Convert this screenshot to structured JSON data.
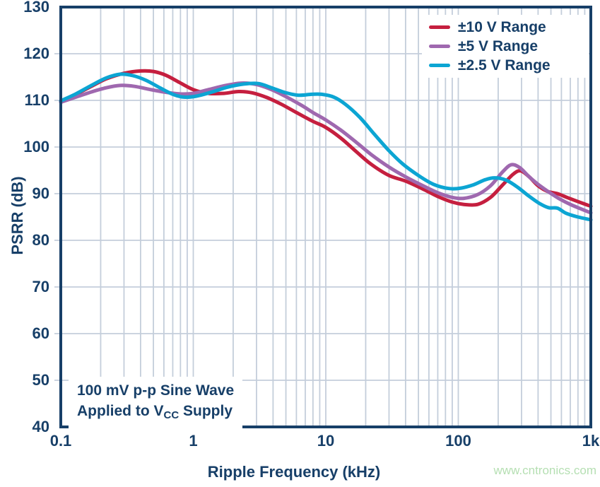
{
  "watermark": {
    "text": "www.cntronics.com",
    "color": "#b5dfb2"
  },
  "chart_data": {
    "type": "line",
    "title": "",
    "xlabel": "Ripple Frequency (kHz)",
    "ylabel": "PSRR (dB)",
    "x_scale": "log",
    "xlim": [
      0.1,
      1000
    ],
    "ylim": [
      40,
      130
    ],
    "y_grid_step": 10,
    "grid": true,
    "legend_position": "top-right-inside",
    "colors": {
      "text": "#173f68",
      "axis_border": "#173f68",
      "grid": "#c4cedb",
      "plot_background": "#ffffff"
    },
    "x_ticks": [
      {
        "value": 0.1,
        "label": "0.1"
      },
      {
        "value": 1,
        "label": "1"
      },
      {
        "value": 10,
        "label": "10"
      },
      {
        "value": 100,
        "label": "100"
      },
      {
        "value": 1000,
        "label": "1k"
      }
    ],
    "y_ticks": [
      {
        "value": 130,
        "label": "130"
      },
      {
        "value": 120,
        "label": "120"
      },
      {
        "value": 110,
        "label": "110"
      },
      {
        "value": 100,
        "label": "100"
      },
      {
        "value": 90,
        "label": "90"
      },
      {
        "value": 80,
        "label": "80"
      },
      {
        "value": 70,
        "label": "70"
      },
      {
        "value": 60,
        "label": "60"
      },
      {
        "value": 50,
        "label": "50"
      },
      {
        "value": 40,
        "label": "40"
      }
    ],
    "annotation": {
      "line1": "100 mV p-p Sine Wave",
      "line2_pre": "Applied to V",
      "line2_sub": "CC",
      "line2_post": " Supply"
    },
    "series": [
      {
        "name": "±10 V Range",
        "color": "#c51f3f",
        "points": [
          [
            0.1,
            109.8
          ],
          [
            0.13,
            111.3
          ],
          [
            0.17,
            113.0
          ],
          [
            0.22,
            114.6
          ],
          [
            0.3,
            115.8
          ],
          [
            0.4,
            116.3
          ],
          [
            0.5,
            116.2
          ],
          [
            0.62,
            115.4
          ],
          [
            0.78,
            113.9
          ],
          [
            1.0,
            112.3
          ],
          [
            1.3,
            111.5
          ],
          [
            1.7,
            111.5
          ],
          [
            2.2,
            111.9
          ],
          [
            2.8,
            111.6
          ],
          [
            3.6,
            110.6
          ],
          [
            4.6,
            109.2
          ],
          [
            6.0,
            107.4
          ],
          [
            8.0,
            105.5
          ],
          [
            10,
            104.2
          ],
          [
            13,
            101.9
          ],
          [
            17,
            99.0
          ],
          [
            22,
            96.3
          ],
          [
            30,
            93.9
          ],
          [
            40,
            92.7
          ],
          [
            55,
            90.9
          ],
          [
            70,
            89.4
          ],
          [
            90,
            88.2
          ],
          [
            110,
            87.7
          ],
          [
            140,
            87.7
          ],
          [
            175,
            89.2
          ],
          [
            215,
            91.8
          ],
          [
            260,
            94.2
          ],
          [
            295,
            94.9
          ],
          [
            340,
            93.7
          ],
          [
            400,
            91.7
          ],
          [
            470,
            90.5
          ],
          [
            560,
            90.0
          ],
          [
            660,
            89.2
          ],
          [
            800,
            88.3
          ],
          [
            1000,
            87.3
          ]
        ]
      },
      {
        "name": "±5 V Range",
        "color": "#9f68af",
        "points": [
          [
            0.1,
            109.6
          ],
          [
            0.13,
            110.7
          ],
          [
            0.17,
            111.8
          ],
          [
            0.22,
            112.7
          ],
          [
            0.28,
            113.2
          ],
          [
            0.36,
            113.0
          ],
          [
            0.46,
            112.4
          ],
          [
            0.6,
            111.8
          ],
          [
            0.78,
            111.4
          ],
          [
            1.0,
            111.5
          ],
          [
            1.3,
            112.3
          ],
          [
            1.7,
            113.1
          ],
          [
            2.3,
            113.7
          ],
          [
            3.0,
            113.4
          ],
          [
            3.9,
            112.3
          ],
          [
            5.0,
            110.8
          ],
          [
            6.5,
            109.0
          ],
          [
            8.0,
            107.4
          ],
          [
            10,
            105.8
          ],
          [
            13,
            103.6
          ],
          [
            17,
            101.0
          ],
          [
            22,
            98.4
          ],
          [
            30,
            95.7
          ],
          [
            40,
            93.6
          ],
          [
            55,
            91.6
          ],
          [
            70,
            90.2
          ],
          [
            90,
            89.2
          ],
          [
            110,
            89.0
          ],
          [
            140,
            89.8
          ],
          [
            175,
            91.7
          ],
          [
            215,
            94.6
          ],
          [
            250,
            96.2
          ],
          [
            290,
            95.6
          ],
          [
            340,
            93.7
          ],
          [
            400,
            92.0
          ],
          [
            480,
            90.4
          ],
          [
            580,
            88.9
          ],
          [
            700,
            87.7
          ],
          [
            850,
            86.7
          ],
          [
            1000,
            85.9
          ]
        ]
      },
      {
        "name": "±2.5 V Range",
        "color": "#0ca5d3",
        "points": [
          [
            0.1,
            109.9
          ],
          [
            0.13,
            111.4
          ],
          [
            0.17,
            113.2
          ],
          [
            0.22,
            114.8
          ],
          [
            0.28,
            115.6
          ],
          [
            0.35,
            115.3
          ],
          [
            0.44,
            114.3
          ],
          [
            0.56,
            112.7
          ],
          [
            0.7,
            111.3
          ],
          [
            0.85,
            110.7
          ],
          [
            1.05,
            110.9
          ],
          [
            1.35,
            111.7
          ],
          [
            1.8,
            112.8
          ],
          [
            2.4,
            113.5
          ],
          [
            3.1,
            113.6
          ],
          [
            3.9,
            112.7
          ],
          [
            4.9,
            111.7
          ],
          [
            6.2,
            111.1
          ],
          [
            7.8,
            111.3
          ],
          [
            9.3,
            111.3
          ],
          [
            11.5,
            110.7
          ],
          [
            14,
            109.2
          ],
          [
            18,
            106.4
          ],
          [
            23,
            102.9
          ],
          [
            30,
            99.2
          ],
          [
            38,
            96.4
          ],
          [
            50,
            93.9
          ],
          [
            65,
            92.0
          ],
          [
            85,
            91.1
          ],
          [
            105,
            91.2
          ],
          [
            130,
            91.9
          ],
          [
            160,
            93.0
          ],
          [
            190,
            93.4
          ],
          [
            230,
            92.9
          ],
          [
            280,
            91.4
          ],
          [
            340,
            89.5
          ],
          [
            410,
            87.9
          ],
          [
            480,
            87.0
          ],
          [
            560,
            86.9
          ],
          [
            650,
            85.8
          ],
          [
            800,
            85.0
          ],
          [
            1000,
            84.4
          ]
        ]
      }
    ]
  }
}
